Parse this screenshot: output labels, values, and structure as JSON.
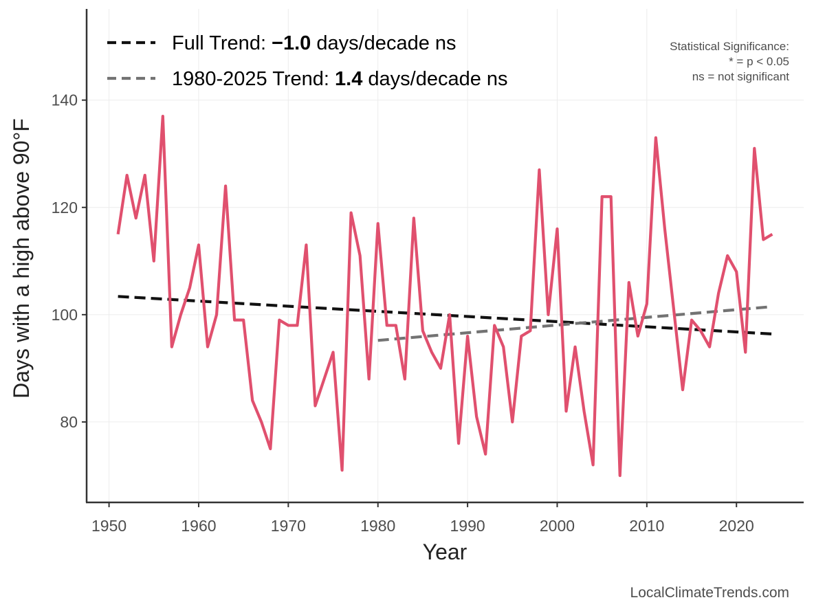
{
  "chart_data": {
    "type": "line",
    "title": "",
    "xlabel": "Year",
    "ylabel": "Days with a high above 90°F",
    "xlim": [
      1947.5,
      2027.5
    ],
    "ylim": [
      65,
      157
    ],
    "xticks": [
      1950,
      1960,
      1970,
      1980,
      1990,
      2000,
      2010,
      2020
    ],
    "yticks": [
      80,
      100,
      120,
      140
    ],
    "grid": true,
    "colors": {
      "series": "#e0506e",
      "full_trend": "#111111",
      "recent_trend": "#737373",
      "axis": "#333333",
      "grid": "#ececec"
    },
    "series": [
      {
        "name": "Days with a high above 90°F",
        "x": [
          1951,
          1952,
          1953,
          1954,
          1955,
          1956,
          1957,
          1958,
          1959,
          1960,
          1961,
          1962,
          1963,
          1964,
          1965,
          1966,
          1967,
          1968,
          1969,
          1970,
          1971,
          1972,
          1973,
          1974,
          1975,
          1976,
          1977,
          1978,
          1979,
          1980,
          1981,
          1982,
          1983,
          1984,
          1985,
          1986,
          1987,
          1988,
          1989,
          1990,
          1991,
          1992,
          1993,
          1994,
          1995,
          1996,
          1997,
          1998,
          1999,
          2000,
          2001,
          2002,
          2003,
          2004,
          2005,
          2006,
          2007,
          2008,
          2009,
          2010,
          2011,
          2012,
          2013,
          2014,
          2015,
          2016,
          2017,
          2018,
          2019,
          2020,
          2021,
          2022,
          2023,
          2024
        ],
        "values": [
          115,
          126,
          118,
          126,
          110,
          137,
          94,
          100,
          105,
          113,
          94,
          100,
          124,
          99,
          99,
          84,
          80,
          75,
          99,
          98,
          98,
          113,
          83,
          88,
          93,
          71,
          119,
          111,
          88,
          117,
          98,
          98,
          88,
          118,
          97,
          93,
          90,
          100,
          76,
          96,
          81,
          74,
          98,
          94,
          80,
          96,
          97,
          127,
          100,
          116,
          82,
          94,
          82,
          72,
          122,
          122,
          70,
          106,
          96,
          102,
          133,
          116,
          101,
          86,
          99,
          97,
          94,
          104,
          111,
          108,
          93,
          131,
          114,
          115
        ]
      }
    ],
    "trends": [
      {
        "name": "Full Trend",
        "x": [
          1951,
          2024
        ],
        "values": [
          103.4,
          96.4
        ],
        "style": "dashed"
      },
      {
        "name": "1980-2025 Trend",
        "x": [
          1980,
          2024
        ],
        "values": [
          95.2,
          101.5
        ],
        "style": "dashed"
      }
    ],
    "legend": {
      "position": "top-left",
      "items": [
        {
          "prefix": "Full Trend: ",
          "value": "−1.0",
          "suffix": " days/decade ns"
        },
        {
          "prefix": "1980-2025 Trend: ",
          "value": "1.4",
          "suffix": " days/decade ns"
        }
      ]
    },
    "annotation": {
      "position": "top-right",
      "lines": [
        "Statistical Significance:",
        "* = p < 0.05",
        "ns = not significant"
      ]
    },
    "credit": "LocalClimateTrends.com"
  }
}
